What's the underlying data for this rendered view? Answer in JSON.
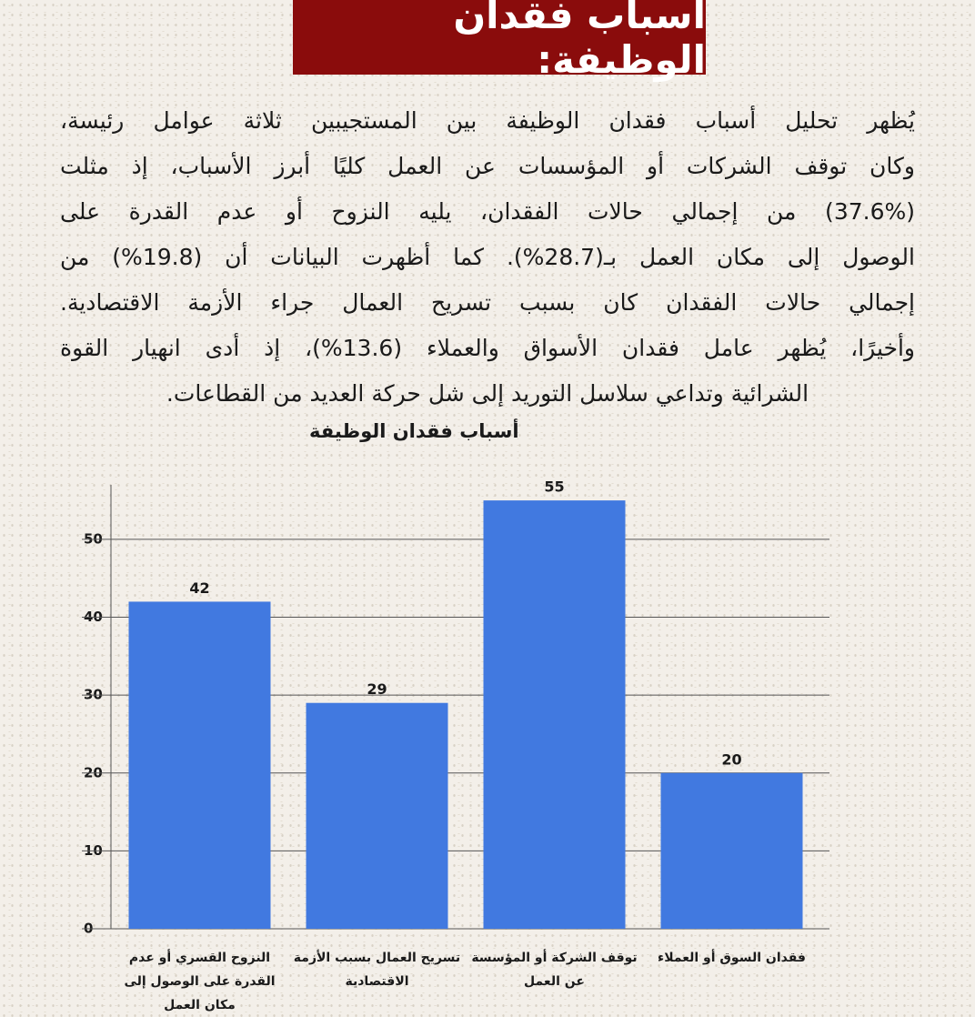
{
  "header": {
    "title": "أسباب فقدان الوظيفة:",
    "paragraph": [
      "يُظهر تحليل أسباب فقدان الوظيفة بين المستجيبين ثلاثة عوامل رئيسة،",
      "وكان توقف الشركات أو المؤسسات عن العمل كليًا أبرز الأسباب، إذ مثلت",
      "(37.6%) من إجمالي حالات الفقدان، يليه النزوح أو عدم القدرة على",
      "الوصول إلى مكان العمل بـ(28.7%). كما أظهرت البيانات أن (19.8%) من",
      "إجمالي حالات الفقدان كان بسبب تسريح العمال جراء الأزمة الاقتصادية.",
      "وأخيرًا، يُظهر عامل فقدان الأسواق والعملاء (13.6%)، إذ أدى انهيار القوة",
      "الشرائية وتداعي سلاسل التوريد إلى شل حركة العديد من القطاعات."
    ]
  },
  "chart_data": {
    "type": "bar",
    "title": "أسباب فقدان الوظيفة",
    "categories": [
      "النزوح القسري أو عدم القدرة على الوصول إلى مكان العمل",
      "تسريح العمال بسبب الأزمة الاقتصادية",
      "توقف الشركة أو المؤسسة عن العمل",
      "فقدان السوق أو العملاء"
    ],
    "values": [
      42,
      29,
      55,
      20
    ],
    "color": "#4179e0",
    "ylim": [
      0,
      57
    ],
    "yticks": [
      0,
      10,
      20,
      30,
      40,
      50
    ],
    "grid": true
  }
}
